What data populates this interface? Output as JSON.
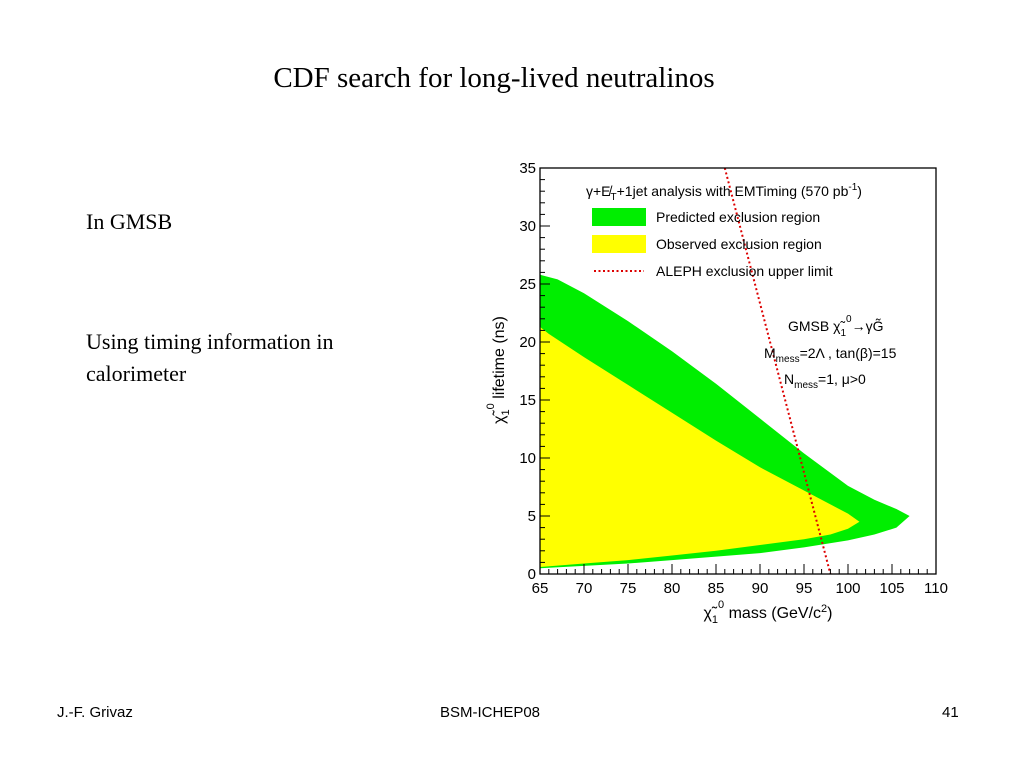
{
  "slide": {
    "title": "CDF search for long-lived neutralinos",
    "bullets": [
      "In GMSB",
      "Using timing information in calorimeter"
    ],
    "footer": {
      "author": "J.-F. Grivaz",
      "conference": "BSM-ICHEP08",
      "page": "41"
    }
  },
  "chart_data": {
    "type": "area",
    "xlabel": "χ̃₁⁰ mass (GeV/c²)",
    "ylabel": "χ̃₁⁰ lifetime (ns)",
    "xlim": [
      65,
      110
    ],
    "ylim": [
      0,
      35
    ],
    "x_ticks": [
      65,
      70,
      75,
      80,
      85,
      90,
      95,
      100,
      105,
      110
    ],
    "y_ticks": [
      0,
      5,
      10,
      15,
      20,
      25,
      30,
      35
    ],
    "legend_position": "top-right",
    "legend_title": "γ+E̸T+1jet analysis with EMTiming (570 pb⁻¹)",
    "annotation": {
      "line1": "GMSB χ̃₁⁰→γG̃",
      "line2": "Mmess=2Λ , tan(β)=15",
      "line3": "Nmess=1, μ>0"
    },
    "series": [
      {
        "name": "Predicted exclusion region",
        "color": "#00ee00",
        "upper": [
          [
            65,
            25.8
          ],
          [
            67,
            25.4
          ],
          [
            70,
            24.2
          ],
          [
            75,
            21.8
          ],
          [
            80,
            19.2
          ],
          [
            85,
            16.4
          ],
          [
            90,
            13.4
          ],
          [
            95,
            10.4
          ],
          [
            100,
            7.6
          ],
          [
            103,
            6.4
          ],
          [
            105.5,
            5.6
          ],
          [
            107,
            5.0
          ]
        ],
        "lower": [
          [
            65,
            0.5
          ],
          [
            70,
            0.7
          ],
          [
            75,
            0.9
          ],
          [
            80,
            1.2
          ],
          [
            85,
            1.5
          ],
          [
            90,
            1.8
          ],
          [
            95,
            2.3
          ],
          [
            100,
            2.9
          ],
          [
            103,
            3.4
          ],
          [
            105.5,
            4.0
          ],
          [
            107,
            5.0
          ]
        ]
      },
      {
        "name": "Observed exclusion region",
        "color": "#ffff00",
        "upper": [
          [
            65,
            21.3
          ],
          [
            66,
            20.7
          ],
          [
            70,
            18.7
          ],
          [
            75,
            16.3
          ],
          [
            80,
            13.9
          ],
          [
            85,
            11.5
          ],
          [
            90,
            9.2
          ],
          [
            95,
            7.2
          ],
          [
            98,
            6.0
          ],
          [
            100,
            5.2
          ],
          [
            101.3,
            4.5
          ]
        ],
        "lower": [
          [
            65,
            0.6
          ],
          [
            70,
            0.9
          ],
          [
            75,
            1.2
          ],
          [
            80,
            1.6
          ],
          [
            85,
            2.0
          ],
          [
            90,
            2.5
          ],
          [
            95,
            3.0
          ],
          [
            98,
            3.4
          ],
          [
            100,
            3.9
          ],
          [
            101.3,
            4.5
          ]
        ]
      },
      {
        "name": "ALEPH exclusion upper limit",
        "color": "#dd0000",
        "style": "dotted",
        "points": [
          [
            86.0,
            35
          ],
          [
            98.0,
            0
          ]
        ]
      }
    ]
  }
}
